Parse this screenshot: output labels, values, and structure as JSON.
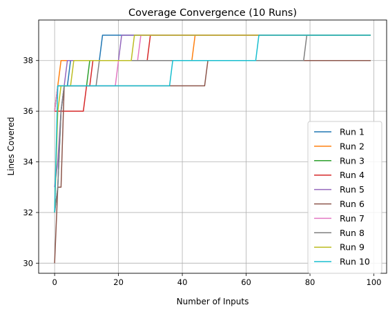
{
  "chart_data": {
    "type": "line",
    "title": "Coverage Convergence (10 Runs)",
    "xlabel": "Number of Inputs",
    "ylabel": "Lines Covered",
    "xlim": [
      -5,
      104
    ],
    "ylim": [
      29.6,
      39.6
    ],
    "xticks": [
      0,
      20,
      40,
      60,
      80,
      100
    ],
    "yticks": [
      30,
      32,
      34,
      36,
      38
    ],
    "grid": true,
    "legend_position": "lower right",
    "series": [
      {
        "name": "Run 1",
        "color": "#1f77b4",
        "x": [
          0,
          1,
          2,
          3,
          4,
          5,
          14,
          15,
          99
        ],
        "y": [
          32,
          33,
          36,
          37,
          37,
          38,
          38,
          39,
          39
        ]
      },
      {
        "name": "Run 2",
        "color": "#ff7f0e",
        "x": [
          0,
          1,
          2,
          43,
          44,
          99
        ],
        "y": [
          36,
          37,
          38,
          38,
          39,
          39
        ]
      },
      {
        "name": "Run 3",
        "color": "#2ca02c",
        "x": [
          0,
          1,
          10,
          11,
          99
        ],
        "y": [
          36,
          37,
          37,
          38,
          38
        ]
      },
      {
        "name": "Run 4",
        "color": "#d62728",
        "x": [
          0,
          1,
          9,
          10,
          11,
          12,
          29,
          30,
          99
        ],
        "y": [
          36,
          36,
          36,
          37,
          37,
          38,
          38,
          39,
          39
        ]
      },
      {
        "name": "Run 5",
        "color": "#9467bd",
        "x": [
          0,
          1,
          2,
          3,
          4,
          20,
          21,
          99
        ],
        "y": [
          33,
          34,
          36,
          37,
          38,
          38,
          39,
          39
        ]
      },
      {
        "name": "Run 6",
        "color": "#8c564b",
        "x": [
          0,
          1,
          2,
          3,
          4,
          47,
          48,
          99
        ],
        "y": [
          30,
          33,
          33,
          37,
          37,
          37,
          38,
          38
        ]
      },
      {
        "name": "Run 7",
        "color": "#e377c2",
        "x": [
          0,
          1,
          2,
          19,
          20,
          26,
          27,
          99
        ],
        "y": [
          36,
          37,
          37,
          37,
          38,
          38,
          39,
          39
        ]
      },
      {
        "name": "Run 8",
        "color": "#7f7f7f",
        "x": [
          0,
          1,
          2,
          3,
          4,
          13,
          14,
          78,
          79,
          99
        ],
        "y": [
          32,
          33,
          36,
          37,
          37,
          37,
          38,
          38,
          39,
          39
        ]
      },
      {
        "name": "Run 9",
        "color": "#bcbd22",
        "x": [
          0,
          1,
          2,
          5,
          6,
          24,
          25,
          99
        ],
        "y": [
          32,
          36,
          37,
          37,
          38,
          38,
          39,
          39
        ]
      },
      {
        "name": "Run 10",
        "color": "#17becf",
        "x": [
          0,
          1,
          36,
          37,
          63,
          64,
          99
        ],
        "y": [
          32,
          37,
          37,
          38,
          38,
          39,
          39
        ]
      }
    ]
  }
}
